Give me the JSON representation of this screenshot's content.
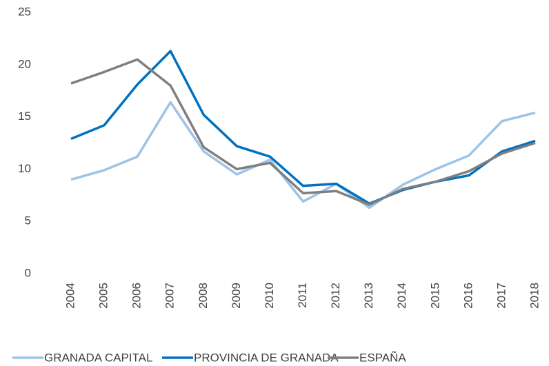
{
  "chart_data": {
    "type": "line",
    "categories": [
      "2004",
      "2005",
      "2006",
      "2007",
      "2008",
      "2009",
      "2010",
      "2011",
      "2012",
      "2013",
      "2014",
      "2015",
      "2016",
      "2017",
      "2018"
    ],
    "series": [
      {
        "name": "GRANADA CAPITAL",
        "color": "#9dc3e6",
        "values": [
          9.0,
          9.9,
          11.2,
          16.4,
          11.7,
          9.5,
          10.9,
          6.9,
          8.6,
          6.3,
          8.5,
          10.0,
          11.3,
          14.6,
          15.4
        ]
      },
      {
        "name": "PROVINCIA DE GRANADA",
        "color": "#0070c0",
        "values": [
          12.9,
          14.2,
          18.1,
          21.3,
          15.2,
          12.2,
          11.2,
          8.4,
          8.6,
          6.7,
          8.0,
          8.8,
          9.4,
          11.7,
          12.7
        ]
      },
      {
        "name": "ESPAÑA",
        "color": "#7f7f7f",
        "values": [
          18.2,
          19.3,
          20.5,
          18.0,
          12.1,
          10.0,
          10.6,
          7.7,
          7.9,
          6.6,
          8.1,
          8.8,
          9.8,
          11.5,
          12.5
        ]
      }
    ],
    "ylim": [
      0,
      25
    ],
    "yticks": [
      0,
      5,
      10,
      15,
      20,
      25
    ],
    "grid": false,
    "legend": "bottom"
  }
}
